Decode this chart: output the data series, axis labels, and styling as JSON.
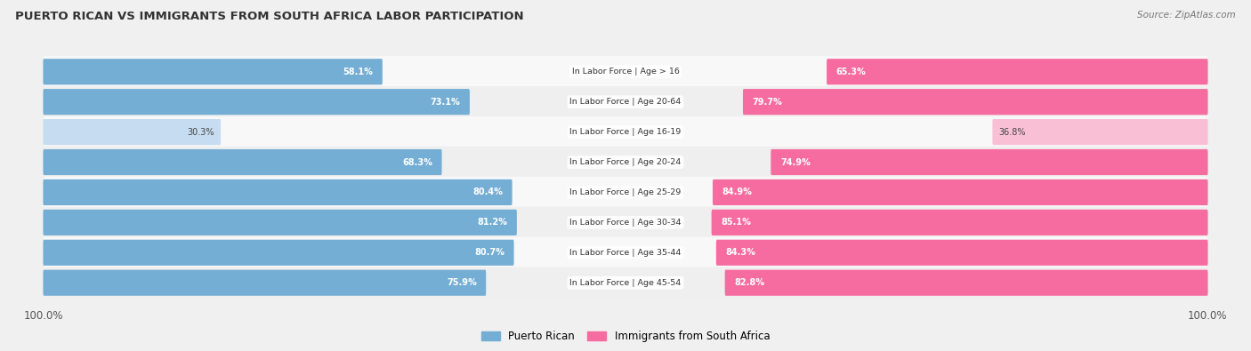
{
  "title": "PUERTO RICAN VS IMMIGRANTS FROM SOUTH AFRICA LABOR PARTICIPATION",
  "source": "Source: ZipAtlas.com",
  "categories": [
    "In Labor Force | Age > 16",
    "In Labor Force | Age 20-64",
    "In Labor Force | Age 16-19",
    "In Labor Force | Age 20-24",
    "In Labor Force | Age 25-29",
    "In Labor Force | Age 30-34",
    "In Labor Force | Age 35-44",
    "In Labor Force | Age 45-54"
  ],
  "puerto_rican": [
    58.1,
    73.1,
    30.3,
    68.3,
    80.4,
    81.2,
    80.7,
    75.9
  ],
  "south_africa": [
    65.3,
    79.7,
    36.8,
    74.9,
    84.9,
    85.1,
    84.3,
    82.8
  ],
  "color_pr": "#74AED4",
  "color_sa": "#F76CA0",
  "color_pr_light": "#C6DCF0",
  "color_sa_light": "#F9C0D5",
  "bg_color": "#f0f0f0",
  "row_bg_odd": "#f8f8f8",
  "row_bg_even": "#efefef",
  "max_val": 100.0,
  "bar_height": 0.62,
  "label_inside_color": "white",
  "label_outside_color": "#444444",
  "cat_label_color": "#333333",
  "title_color": "#333333",
  "source_color": "#777777",
  "tick_color": "#555555"
}
